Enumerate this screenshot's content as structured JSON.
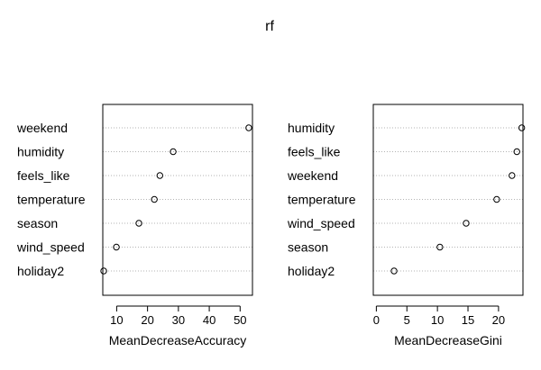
{
  "title": "rf",
  "chart_data": [
    {
      "type": "scatter",
      "subtype": "dotchart",
      "xlabel": "MeanDecreaseAccuracy",
      "xlim": [
        5.5,
        54
      ],
      "ticks": [
        10,
        20,
        30,
        40,
        50
      ],
      "labels": [
        "weekend",
        "humidity",
        "feels_like",
        "temperature",
        "season",
        "wind_speed",
        "holiday2"
      ],
      "values": [
        52.8,
        28.3,
        24.0,
        22.2,
        17.2,
        9.9,
        5.8
      ]
    },
    {
      "type": "scatter",
      "subtype": "dotchart",
      "xlabel": "MeanDecreaseGini",
      "xlim": [
        -0.5,
        24
      ],
      "ticks": [
        0,
        5,
        10,
        15,
        20
      ],
      "labels": [
        "humidity",
        "feels_like",
        "weekend",
        "temperature",
        "wind_speed",
        "season",
        "holiday2"
      ],
      "values": [
        23.8,
        23.0,
        22.2,
        19.7,
        14.7,
        10.4,
        2.9
      ]
    }
  ]
}
